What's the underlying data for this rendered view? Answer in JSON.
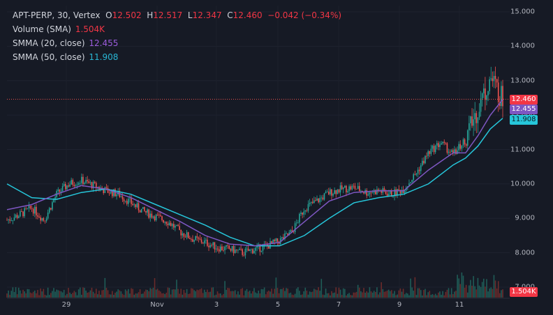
{
  "legend": {
    "symbol": "APT-PERP, 30, Vertex",
    "ohlc": {
      "o_label": "O",
      "o": "12.502",
      "h_label": "H",
      "h": "12.517",
      "l_label": "L",
      "l": "12.347",
      "c_label": "C",
      "c": "12.460",
      "change": "−0.042 (−0.34%)"
    },
    "volume": {
      "label": "Volume (SMA)",
      "value": "1.504K"
    },
    "smma20": {
      "label": "SMMA (20, close)",
      "value": "12.455"
    },
    "smma50": {
      "label": "SMMA (50, close)",
      "value": "11.908"
    }
  },
  "badges": {
    "last_price": "12.460",
    "smma20": "12.455",
    "smma50": "11.908",
    "volume": "1.504K"
  },
  "colors": {
    "background": "#161a25",
    "up": "#26a69a",
    "down": "#ef5350",
    "smma20": "#7e57c2",
    "smma50": "#26c6da",
    "text": "#d1d4dc"
  },
  "chart_data": {
    "type": "line",
    "y_ticks": [
      "15.000",
      "14.000",
      "13.000",
      "12.000",
      "11.000",
      "10.000",
      "9.000",
      "8.000",
      "7.000"
    ],
    "x_ticks": [
      "29",
      "Nov",
      "3",
      "5",
      "7",
      "9",
      "11"
    ],
    "ylim": [
      7.0,
      15.0
    ],
    "last_price": 12.46,
    "smma20_path": [
      [
        0,
        9.25
      ],
      [
        2,
        9.4
      ],
      [
        4,
        9.7
      ],
      [
        6,
        9.95
      ],
      [
        8,
        9.85
      ],
      [
        10,
        9.6
      ],
      [
        12,
        9.25
      ],
      [
        14,
        8.9
      ],
      [
        16,
        8.5
      ],
      [
        18,
        8.25
      ],
      [
        20,
        8.2
      ],
      [
        22,
        8.3
      ],
      [
        24,
        8.9
      ],
      [
        26,
        9.5
      ],
      [
        28,
        9.75
      ],
      [
        30,
        9.8
      ],
      [
        32,
        9.8
      ],
      [
        34,
        10.4
      ],
      [
        36,
        10.9
      ],
      [
        37,
        10.9
      ],
      [
        38,
        11.4
      ],
      [
        39,
        12.0
      ],
      [
        40,
        12.455
      ]
    ],
    "smma50_path": [
      [
        0,
        10.0
      ],
      [
        2,
        9.6
      ],
      [
        4,
        9.55
      ],
      [
        6,
        9.75
      ],
      [
        8,
        9.85
      ],
      [
        10,
        9.7
      ],
      [
        12,
        9.4
      ],
      [
        14,
        9.1
      ],
      [
        16,
        8.8
      ],
      [
        18,
        8.45
      ],
      [
        20,
        8.2
      ],
      [
        22,
        8.2
      ],
      [
        24,
        8.5
      ],
      [
        26,
        9.0
      ],
      [
        28,
        9.45
      ],
      [
        30,
        9.6
      ],
      [
        32,
        9.7
      ],
      [
        34,
        10.0
      ],
      [
        36,
        10.55
      ],
      [
        37,
        10.75
      ],
      [
        38,
        11.1
      ],
      [
        39,
        11.6
      ],
      [
        40,
        11.908
      ]
    ],
    "close_path": [
      [
        0,
        8.95
      ],
      [
        1,
        9.1
      ],
      [
        2,
        9.3
      ],
      [
        3,
        8.95
      ],
      [
        4,
        9.7
      ],
      [
        5,
        10.0
      ],
      [
        6,
        10.1
      ],
      [
        7,
        9.95
      ],
      [
        8,
        9.8
      ],
      [
        9,
        9.7
      ],
      [
        10,
        9.45
      ],
      [
        11,
        9.2
      ],
      [
        12,
        9.05
      ],
      [
        13,
        8.9
      ],
      [
        14,
        8.6
      ],
      [
        15,
        8.4
      ],
      [
        16,
        8.3
      ],
      [
        17,
        8.15
      ],
      [
        18,
        8.1
      ],
      [
        19,
        8.0
      ],
      [
        20,
        8.1
      ],
      [
        21,
        8.2
      ],
      [
        22,
        8.35
      ],
      [
        23,
        8.6
      ],
      [
        24,
        9.3
      ],
      [
        25,
        9.5
      ],
      [
        26,
        9.75
      ],
      [
        27,
        9.85
      ],
      [
        28,
        9.9
      ],
      [
        29,
        9.75
      ],
      [
        30,
        9.8
      ],
      [
        31,
        9.7
      ],
      [
        32,
        9.85
      ],
      [
        33,
        10.3
      ],
      [
        34,
        10.9
      ],
      [
        35,
        11.2
      ],
      [
        36,
        10.85
      ],
      [
        37,
        11.3
      ],
      [
        38,
        12.2
      ],
      [
        39,
        13.1
      ],
      [
        40,
        12.46
      ]
    ]
  }
}
